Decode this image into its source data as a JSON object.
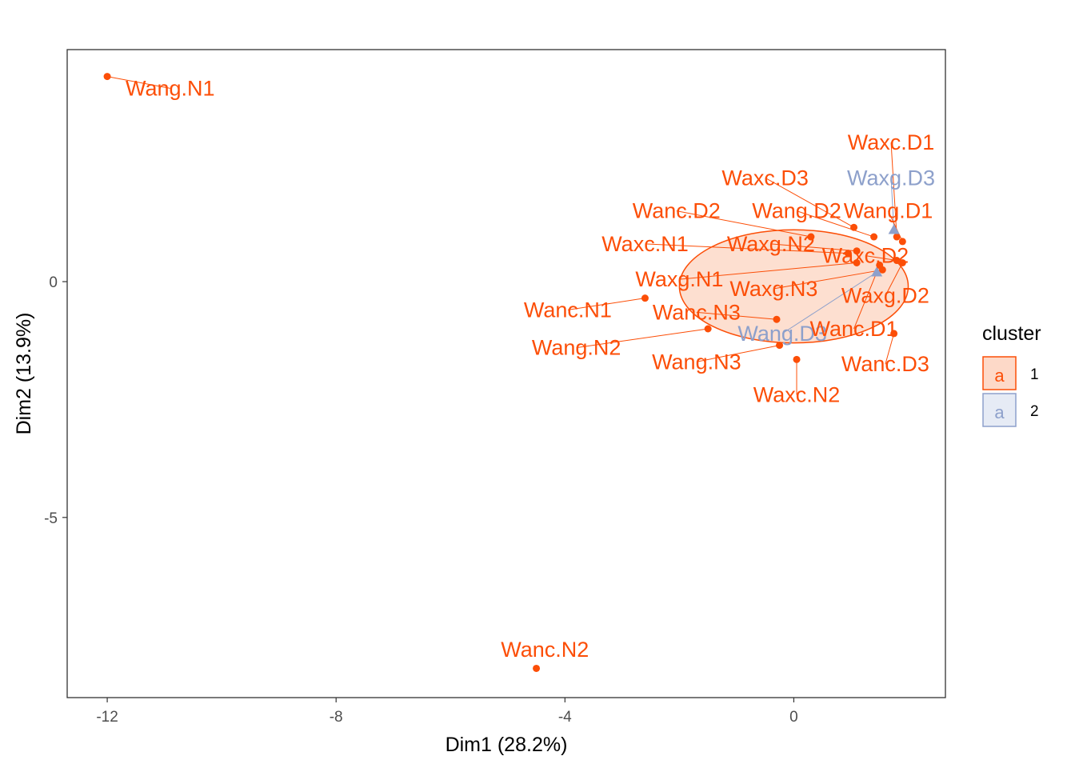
{
  "chart_data": {
    "type": "scatter",
    "xlabel": "Dim1 (28.2%)",
    "ylabel": "Dim2 (13.9%)",
    "xlim": [
      -12.7,
      2.65
    ],
    "ylim": [
      -8.82,
      4.92
    ],
    "xticks": [
      -12,
      -8,
      -4,
      0
    ],
    "yticks": [
      -5,
      0
    ],
    "grid": false,
    "legend_position": "right",
    "legend": {
      "title": "cluster",
      "entries": [
        {
          "label": "1",
          "glyph": "a",
          "color": "#FC4E07"
        },
        {
          "label": "2",
          "glyph": "a",
          "color": "#8DA0CB"
        }
      ]
    },
    "colors": {
      "cluster1": "#FC4E07",
      "cluster2": "#8DA0CB",
      "ellipse_fill": "#FDD9C8"
    },
    "ellipse": {
      "cluster": "1",
      "cx": 0.0,
      "cy": -0.1,
      "rx": 2.0,
      "ry": 1.2
    },
    "points": [
      {
        "label": "Wang.N1",
        "x": -12.0,
        "y": 4.35,
        "cluster": "1",
        "lx": -10.9,
        "ly": 4.1
      },
      {
        "label": "Wanc.N2",
        "x": -4.5,
        "y": -8.2,
        "cluster": "1",
        "lx": -4.35,
        "ly": -7.8
      },
      {
        "label": "Wanc.N1",
        "x": -2.6,
        "y": -0.35,
        "cluster": "1",
        "lx": -3.95,
        "ly": -0.6
      },
      {
        "label": "Wang.N2",
        "x": -1.5,
        "y": -1.0,
        "cluster": "1",
        "lx": -3.8,
        "ly": -1.4
      },
      {
        "label": "Wanc.N3",
        "x": -0.3,
        "y": -0.8,
        "cluster": "1",
        "lx": -1.7,
        "ly": -0.65
      },
      {
        "label": "Wang.N3",
        "x": -0.25,
        "y": -1.35,
        "cluster": "1",
        "lx": -1.7,
        "ly": -1.7
      },
      {
        "label": "Waxc.N2",
        "x": 0.05,
        "y": -1.65,
        "cluster": "1",
        "lx": 0.05,
        "ly": -2.4
      },
      {
        "label": "Wanc.D2",
        "x": 0.3,
        "y": 0.95,
        "cluster": "1",
        "lx": -2.05,
        "ly": 1.5
      },
      {
        "label": "Wang.D2",
        "x": 1.4,
        "y": 0.95,
        "cluster": "1",
        "lx": 0.05,
        "ly": 1.5
      },
      {
        "label": "Waxc.D3",
        "x": 1.05,
        "y": 1.15,
        "cluster": "1",
        "lx": -0.5,
        "ly": 2.2
      },
      {
        "label": "Waxc.D1",
        "x": 1.8,
        "y": 0.95,
        "cluster": "1",
        "lx": 1.7,
        "ly": 2.95
      },
      {
        "label": "Waxg.D3",
        "x": 1.75,
        "y": 1.1,
        "cluster": "2",
        "lx": 1.7,
        "ly": 2.2
      },
      {
        "label": "Wang.D1",
        "x": 1.9,
        "y": 0.85,
        "cluster": "1",
        "lx": 1.65,
        "ly": 1.5
      },
      {
        "label": "Waxc.N1",
        "x": 0.95,
        "y": 0.6,
        "cluster": "1",
        "lx": -2.6,
        "ly": 0.8
      },
      {
        "label": "Waxg.N2",
        "x": 1.1,
        "y": 0.65,
        "cluster": "1",
        "lx": -0.4,
        "ly": 0.8
      },
      {
        "label": "Waxc.D2",
        "x": 1.8,
        "y": 0.45,
        "cluster": "1",
        "lx": 1.25,
        "ly": 0.55
      },
      {
        "label": "Waxg.N1",
        "x": 1.1,
        "y": 0.4,
        "cluster": "1",
        "lx": -2.0,
        "ly": 0.05
      },
      {
        "label": "Waxg.N3",
        "x": 1.55,
        "y": 0.25,
        "cluster": "1",
        "lx": -0.35,
        "ly": -0.15
      },
      {
        "label": "Waxg.D2",
        "x": 1.9,
        "y": 0.4,
        "cluster": "1",
        "lx": 1.6,
        "ly": -0.3
      },
      {
        "label": "Wang.D3",
        "x": 1.45,
        "y": 0.2,
        "cluster": "2",
        "lx": -0.2,
        "ly": -1.1
      },
      {
        "label": "Wanc.D1",
        "x": 1.5,
        "y": 0.35,
        "cluster": "1",
        "lx": 1.05,
        "ly": -1.0
      },
      {
        "label": "Wanc.D3",
        "x": 1.75,
        "y": -1.1,
        "cluster": "1",
        "lx": 1.6,
        "ly": -1.75
      }
    ]
  }
}
